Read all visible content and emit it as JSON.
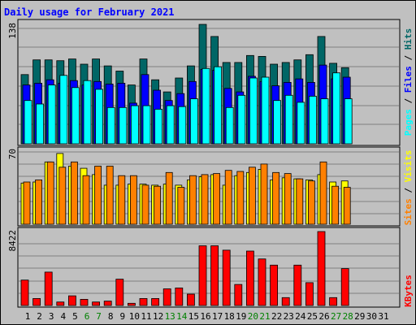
{
  "title": "Daily usage for February 2021",
  "chart_data": {
    "type": "bar",
    "title": "Daily usage for February 2021",
    "categories": [
      "1",
      "2",
      "3",
      "4",
      "5",
      "6",
      "7",
      "8",
      "9",
      "10",
      "11",
      "12",
      "13",
      "14",
      "15",
      "16",
      "17",
      "18",
      "19",
      "20",
      "21",
      "22",
      "23",
      "24",
      "25",
      "26",
      "27",
      "28",
      "29",
      "30",
      "31"
    ],
    "weekend_days": [
      "6",
      "7",
      "13",
      "14",
      "20",
      "21",
      "27",
      "28"
    ],
    "colors": {
      "hits": "#006666",
      "files": "#0000ff",
      "pages": "#00ffff",
      "visits": "#ffff00",
      "sites": "#ff8000",
      "kbytes": "#ff0000",
      "weekday_label": "#000000",
      "weekend_label": "#008000"
    },
    "panels": [
      {
        "id": "top",
        "ymax_label": "138",
        "ymax": 138,
        "legend": [
          {
            "text": "Pages",
            "color": "#00ffff"
          },
          {
            "text": " / ",
            "color": "#000000"
          },
          {
            "text": "Files",
            "color": "#0000ff"
          },
          {
            "text": " / ",
            "color": "#000000"
          },
          {
            "text": "Hits",
            "color": "#006666"
          }
        ],
        "series": [
          {
            "name": "Hits",
            "color": "#006666",
            "values": [
              80,
              97,
              97,
              96,
              98,
              92,
              98,
              90,
              84,
              68,
              98,
              74,
              60,
              76,
              90,
              138,
              124,
              94,
              94,
              102,
              101,
              92,
              94,
              97,
              103,
              124,
              93,
              88,
              0,
              0,
              0
            ]
          },
          {
            "name": "Files",
            "color": "#0000ff",
            "values": [
              68,
              70,
              74,
              70,
              73,
              68,
              72,
              69,
              70,
              47,
              80,
              62,
              50,
              58,
              72,
              86,
              85,
              64,
              60,
              78,
              72,
              67,
              71,
              75,
              71,
              91,
              75,
              77,
              0,
              0,
              0
            ]
          },
          {
            "name": "Pages",
            "color": "#00ffff",
            "values": [
              50,
              46,
              68,
              79,
              65,
              73,
              63,
              42,
              42,
              44,
              44,
              40,
              44,
              43,
              52,
              87,
              89,
              42,
              56,
              76,
              77,
              50,
              56,
              48,
              55,
              52,
              82,
              52,
              0,
              0,
              0
            ]
          }
        ]
      },
      {
        "id": "middle",
        "ymax_label": "70",
        "ymax": 70,
        "legend": [
          {
            "text": "Sites",
            "color": "#ff8000"
          },
          {
            "text": " / ",
            "color": "#000000"
          },
          {
            "text": "Visits",
            "color": "#ffff00"
          }
        ],
        "series": [
          {
            "name": "Visits",
            "color": "#ffff00",
            "values": [
              39,
              40,
              59,
              67,
              55,
              53,
              47,
              37,
              37,
              38,
              38,
              37,
              38,
              37,
              42,
              45,
              47,
              37,
              46,
              49,
              52,
              42,
              44,
              43,
              42,
              47,
              40,
              41,
              0,
              0,
              0
            ]
          },
          {
            "name": "Sites",
            "color": "#ff8000",
            "values": [
              40,
              42,
              59,
              54,
              59,
              46,
              55,
              55,
              46,
              46,
              37,
              36,
              49,
              35,
              46,
              47,
              48,
              51,
              50,
              54,
              57,
              49,
              48,
              43,
              41,
              59,
              36,
              35,
              0,
              0,
              0
            ]
          }
        ]
      },
      {
        "id": "bottom",
        "ymax_label": "8422",
        "ymax": 8422,
        "legend": [
          {
            "text": "KBytes",
            "color": "#ff0000"
          }
        ],
        "series": [
          {
            "name": "KBytes",
            "color": "#ff0000",
            "values": [
              2900,
              800,
              3800,
              400,
              1100,
              700,
              400,
              500,
              3000,
              250,
              800,
              800,
              1900,
              2000,
              1300,
              6800,
              6800,
              6300,
              2400,
              6200,
              5300,
              4600,
              900,
              4600,
              2600,
              8422,
              900,
              4200,
              0,
              0,
              0
            ]
          }
        ]
      }
    ]
  }
}
